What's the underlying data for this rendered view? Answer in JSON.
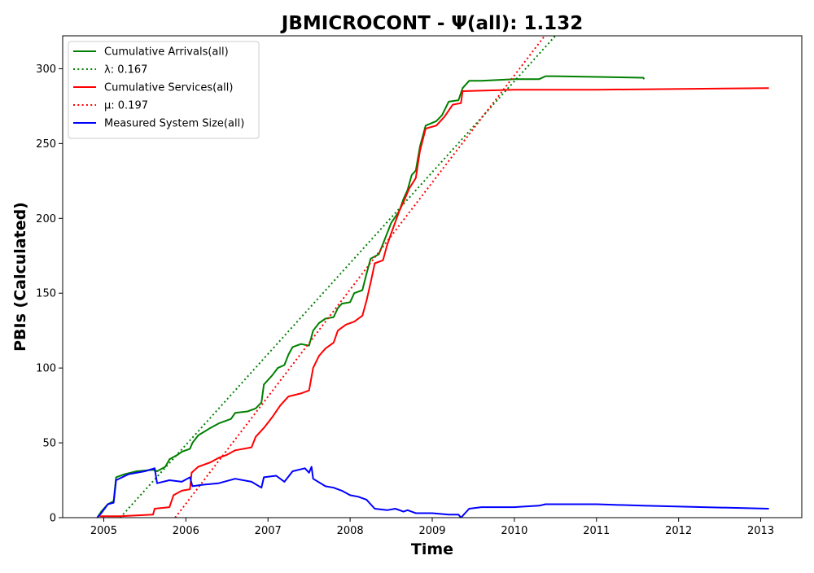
{
  "chart_data": {
    "type": "line",
    "title": "JBMICROCONT -  Ψ(all): 1.132",
    "xlabel": "Time",
    "ylabel": "PBIs (Calculated)",
    "xlim": [
      2004.5,
      2013.5
    ],
    "ylim": [
      0,
      322
    ],
    "x_ticks": [
      2005,
      2006,
      2007,
      2008,
      2009,
      2010,
      2011,
      2012,
      2013
    ],
    "x_tick_labels": [
      "2005",
      "2006",
      "2007",
      "2008",
      "2009",
      "2010",
      "2011",
      "2012",
      "2013"
    ],
    "y_ticks": [
      0,
      50,
      100,
      150,
      200,
      250,
      300
    ],
    "y_tick_labels": [
      "0",
      "50",
      "100",
      "150",
      "200",
      "250",
      "300"
    ],
    "grid": false,
    "legend_position": "top-left",
    "series": [
      {
        "name": "Cumulative Arrivals(all)",
        "style": "solid",
        "color": "#008000",
        "points": [
          [
            2004.92,
            0
          ],
          [
            2004.97,
            4
          ],
          [
            2005.05,
            9
          ],
          [
            2005.12,
            11
          ],
          [
            2005.15,
            27
          ],
          [
            2005.25,
            29
          ],
          [
            2005.4,
            31
          ],
          [
            2005.6,
            32
          ],
          [
            2005.65,
            31
          ],
          [
            2005.75,
            34
          ],
          [
            2005.8,
            39
          ],
          [
            2005.9,
            42
          ],
          [
            2005.95,
            44
          ],
          [
            2006.05,
            46
          ],
          [
            2006.08,
            50
          ],
          [
            2006.15,
            55
          ],
          [
            2006.3,
            60
          ],
          [
            2006.4,
            63
          ],
          [
            2006.55,
            66
          ],
          [
            2006.6,
            70
          ],
          [
            2006.75,
            71
          ],
          [
            2006.85,
            73
          ],
          [
            2006.92,
            77
          ],
          [
            2006.95,
            89
          ],
          [
            2007.05,
            95
          ],
          [
            2007.12,
            100
          ],
          [
            2007.2,
            102
          ],
          [
            2007.25,
            109
          ],
          [
            2007.3,
            114
          ],
          [
            2007.4,
            116
          ],
          [
            2007.5,
            115
          ],
          [
            2007.55,
            125
          ],
          [
            2007.62,
            130
          ],
          [
            2007.7,
            133
          ],
          [
            2007.8,
            134
          ],
          [
            2007.85,
            140
          ],
          [
            2007.9,
            143
          ],
          [
            2008.0,
            144
          ],
          [
            2008.05,
            150
          ],
          [
            2008.15,
            152
          ],
          [
            2008.2,
            163
          ],
          [
            2008.25,
            173
          ],
          [
            2008.35,
            176
          ],
          [
            2008.4,
            183
          ],
          [
            2008.5,
            197
          ],
          [
            2008.6,
            205
          ],
          [
            2008.65,
            213
          ],
          [
            2008.7,
            219
          ],
          [
            2008.75,
            229
          ],
          [
            2008.8,
            232
          ],
          [
            2008.85,
            248
          ],
          [
            2008.92,
            262
          ],
          [
            2009.05,
            265
          ],
          [
            2009.12,
            269
          ],
          [
            2009.2,
            278
          ],
          [
            2009.32,
            279
          ],
          [
            2009.37,
            287
          ],
          [
            2009.45,
            292
          ],
          [
            2009.6,
            292
          ],
          [
            2010.0,
            293
          ],
          [
            2010.3,
            293
          ],
          [
            2010.38,
            295
          ],
          [
            2010.5,
            295
          ],
          [
            2011.57,
            294
          ],
          [
            2011.58,
            293
          ]
        ]
      },
      {
        "name": "λ: 0.167",
        "style": "dotted",
        "color": "#008000",
        "points": [
          [
            2005.2,
            0
          ],
          [
            2010.5,
            322
          ]
        ]
      },
      {
        "name": "Cumulative Services(all)",
        "style": "solid",
        "color": "#ff0000",
        "points": [
          [
            2004.95,
            1
          ],
          [
            2005.2,
            1
          ],
          [
            2005.6,
            2
          ],
          [
            2005.62,
            6
          ],
          [
            2005.8,
            7
          ],
          [
            2005.85,
            15
          ],
          [
            2005.95,
            18
          ],
          [
            2006.05,
            19
          ],
          [
            2006.07,
            30
          ],
          [
            2006.15,
            34
          ],
          [
            2006.3,
            37
          ],
          [
            2006.4,
            40
          ],
          [
            2006.5,
            42
          ],
          [
            2006.6,
            45
          ],
          [
            2006.8,
            47
          ],
          [
            2006.85,
            54
          ],
          [
            2006.95,
            60
          ],
          [
            2007.05,
            67
          ],
          [
            2007.15,
            75
          ],
          [
            2007.25,
            81
          ],
          [
            2007.4,
            83
          ],
          [
            2007.5,
            85
          ],
          [
            2007.55,
            100
          ],
          [
            2007.62,
            108
          ],
          [
            2007.7,
            113
          ],
          [
            2007.8,
            117
          ],
          [
            2007.85,
            125
          ],
          [
            2007.95,
            129
          ],
          [
            2008.05,
            131
          ],
          [
            2008.15,
            135
          ],
          [
            2008.2,
            145
          ],
          [
            2008.25,
            157
          ],
          [
            2008.3,
            170
          ],
          [
            2008.4,
            172
          ],
          [
            2008.45,
            182
          ],
          [
            2008.5,
            190
          ],
          [
            2008.6,
            205
          ],
          [
            2008.65,
            211
          ],
          [
            2008.72,
            220
          ],
          [
            2008.8,
            227
          ],
          [
            2008.85,
            245
          ],
          [
            2008.92,
            260
          ],
          [
            2009.05,
            262
          ],
          [
            2009.15,
            268
          ],
          [
            2009.25,
            276
          ],
          [
            2009.35,
            277
          ],
          [
            2009.37,
            285
          ],
          [
            2010.0,
            286
          ],
          [
            2011.0,
            286
          ],
          [
            2013.1,
            287
          ]
        ]
      },
      {
        "name": "μ: 0.197",
        "style": "dotted",
        "color": "#ff0000",
        "points": [
          [
            2005.87,
            0
          ],
          [
            2010.37,
            322
          ]
        ]
      },
      {
        "name": "Measured System Size(all)",
        "style": "solid",
        "color": "#0000ff",
        "points": [
          [
            2004.92,
            0
          ],
          [
            2004.97,
            3
          ],
          [
            2005.05,
            9
          ],
          [
            2005.12,
            10
          ],
          [
            2005.15,
            25
          ],
          [
            2005.3,
            29
          ],
          [
            2005.5,
            31
          ],
          [
            2005.62,
            33
          ],
          [
            2005.65,
            23
          ],
          [
            2005.8,
            25
          ],
          [
            2005.95,
            24
          ],
          [
            2006.05,
            27
          ],
          [
            2006.08,
            21
          ],
          [
            2006.2,
            22
          ],
          [
            2006.4,
            23
          ],
          [
            2006.6,
            26
          ],
          [
            2006.8,
            24
          ],
          [
            2006.92,
            20
          ],
          [
            2006.95,
            27
          ],
          [
            2007.1,
            28
          ],
          [
            2007.2,
            24
          ],
          [
            2007.3,
            31
          ],
          [
            2007.45,
            33
          ],
          [
            2007.5,
            30
          ],
          [
            2007.53,
            34
          ],
          [
            2007.55,
            26
          ],
          [
            2007.7,
            21
          ],
          [
            2007.8,
            20
          ],
          [
            2007.9,
            18
          ],
          [
            2008.0,
            15
          ],
          [
            2008.1,
            14
          ],
          [
            2008.2,
            12
          ],
          [
            2008.25,
            9
          ],
          [
            2008.3,
            6
          ],
          [
            2008.45,
            5
          ],
          [
            2008.55,
            6
          ],
          [
            2008.65,
            4
          ],
          [
            2008.7,
            5
          ],
          [
            2008.8,
            3
          ],
          [
            2009.0,
            3
          ],
          [
            2009.2,
            2
          ],
          [
            2009.32,
            2
          ],
          [
            2009.35,
            0
          ],
          [
            2009.45,
            6
          ],
          [
            2009.6,
            7
          ],
          [
            2010.0,
            7
          ],
          [
            2010.3,
            8
          ],
          [
            2010.38,
            9
          ],
          [
            2011.0,
            9
          ],
          [
            2011.57,
            8
          ],
          [
            2013.1,
            6
          ]
        ]
      }
    ]
  }
}
